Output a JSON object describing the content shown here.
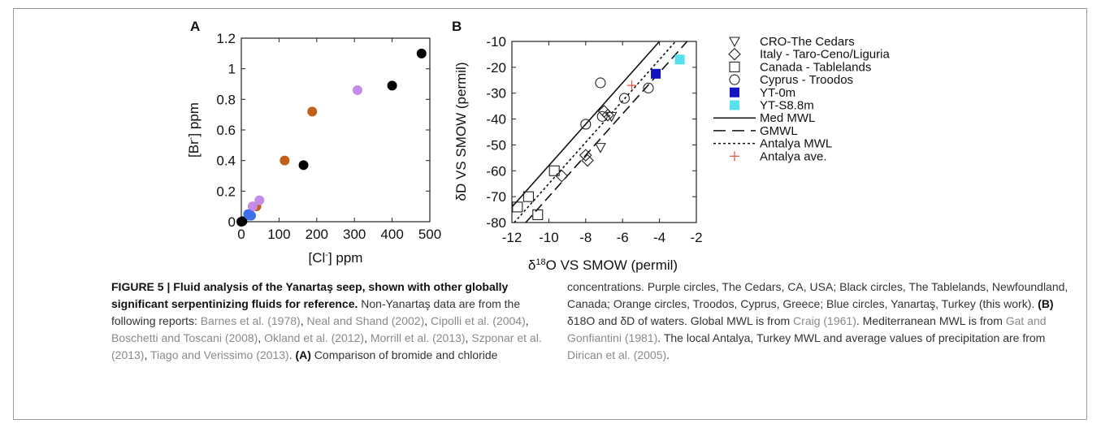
{
  "figure_label": "FIGURE 5 |",
  "figure_title": "Fluid analysis of the Yanartaş seep, shown with other globally significant serpentinizing fluids for reference.",
  "chart_data": [
    {
      "type": "scatter",
      "panel": "A",
      "xlabel": "[Cl-] ppm",
      "ylabel": "[Br-] ppm",
      "xlim": [
        0,
        500
      ],
      "ylim": [
        0,
        1.2
      ],
      "xticks": [
        "0",
        "100",
        "200",
        "300",
        "400",
        "500"
      ],
      "yticks": [
        "0",
        "0.2",
        "0.4",
        "0.6",
        "0.8",
        "1",
        "1.2"
      ],
      "series": [
        {
          "color": "#000000",
          "points": [
            [
              0,
              0
            ],
            [
              3,
              0.003
            ],
            [
              165,
              0.37
            ],
            [
              400,
              0.89
            ],
            [
              478,
              1.1
            ]
          ]
        },
        {
          "color": "#c0611a",
          "points": [
            [
              40,
              0.1
            ],
            [
              115,
              0.4
            ],
            [
              188,
              0.72
            ]
          ]
        },
        {
          "color": "#c58be6",
          "points": [
            [
              30,
              0.1
            ],
            [
              48,
              0.14
            ],
            [
              308,
              0.86
            ]
          ]
        },
        {
          "color": "#3f6fe8",
          "points": [
            [
              18,
              0.05
            ],
            [
              22,
              0.04
            ],
            [
              26,
              0.04
            ]
          ]
        }
      ]
    },
    {
      "type": "scatter",
      "panel": "B",
      "xlabel": "δ18O VS SMOW (permil)",
      "ylabel": "δD VS SMOW (permil)",
      "xlim": [
        -12,
        -2
      ],
      "ylim": [
        -80,
        -10
      ],
      "xticks": [
        "-12",
        "-10",
        "-8",
        "-6",
        "-4",
        "-2"
      ],
      "yticks": [
        "-10",
        "-20",
        "-30",
        "-40",
        "-50",
        "-60",
        "-70",
        "-80"
      ],
      "series": [
        {
          "name": "CRO-The Cedars",
          "marker": "triangle-down",
          "points": [
            [
              -7.2,
              -51
            ],
            [
              -6.6,
              -39
            ]
          ]
        },
        {
          "name": "Italy - Taro-Ceno/Liguria",
          "marker": "diamond",
          "points": [
            [
              -9.3,
              -62
            ],
            [
              -8.0,
              -54
            ],
            [
              -7.9,
              -56
            ],
            [
              -7.0,
              -37
            ],
            [
              -6.8,
              -38.5
            ]
          ]
        },
        {
          "name": "Canada - Tablelands",
          "marker": "square",
          "points": [
            [
              -11.7,
              -74
            ],
            [
              -11.1,
              -70
            ],
            [
              -10.6,
              -77
            ],
            [
              -9.7,
              -60
            ]
          ]
        },
        {
          "name": "Cyprus - Troodos",
          "marker": "circle",
          "points": [
            [
              -8.0,
              -42
            ],
            [
              -7.2,
              -26
            ],
            [
              -7.1,
              -39
            ],
            [
              -5.9,
              -32
            ],
            [
              -4.6,
              -28
            ]
          ]
        },
        {
          "name": "YT-0m",
          "marker": "filled-square",
          "color": "#1313c4",
          "points": [
            [
              -4.2,
              -22.5
            ]
          ]
        },
        {
          "name": "YT-S8.8m",
          "marker": "filled-square",
          "color": "#56e0ee",
          "points": [
            [
              -2.9,
              -17
            ]
          ]
        },
        {
          "name": "Antalya ave.",
          "marker": "plus",
          "color": "#e54b3c",
          "points": [
            [
              -5.5,
              -27
            ]
          ]
        }
      ],
      "lines": [
        {
          "name": "Med MWL",
          "style": "solid",
          "slope": 8,
          "intercept": 22
        },
        {
          "name": "GMWL",
          "style": "dashed",
          "slope": 8,
          "intercept": 10
        },
        {
          "name": "Antalya MWL",
          "style": "dotted",
          "slope": 8,
          "intercept": 15
        }
      ]
    }
  ],
  "caption_left_segments": [
    {
      "t": "FIGURE 5 | Fluid analysis of the Yanartaş seep, shown with other globally significant serpentinizing fluids for reference.",
      "c": "b"
    },
    {
      "t": " Non-Yanartaş data are from the following reports: ",
      "c": ""
    },
    {
      "t": "Barnes et al. (1978)",
      "c": "ref"
    },
    {
      "t": ", ",
      "c": ""
    },
    {
      "t": "Neal and Shand (2002)",
      "c": "ref"
    },
    {
      "t": ", ",
      "c": ""
    },
    {
      "t": "Cipolli et al. (2004)",
      "c": "ref"
    },
    {
      "t": ", ",
      "c": ""
    },
    {
      "t": "Boschetti and Toscani (2008)",
      "c": "ref"
    },
    {
      "t": ", ",
      "c": ""
    },
    {
      "t": "Okland et al. (2012)",
      "c": "ref"
    },
    {
      "t": ", ",
      "c": ""
    },
    {
      "t": "Morrill et al. (2013)",
      "c": "ref"
    },
    {
      "t": ", ",
      "c": ""
    },
    {
      "t": "Szponar et al. (2013)",
      "c": "ref"
    },
    {
      "t": ", ",
      "c": ""
    },
    {
      "t": "Tiago and Verissimo (2013)",
      "c": "ref"
    },
    {
      "t": ". ",
      "c": ""
    },
    {
      "t": "(A)",
      "c": "b"
    },
    {
      "t": " Comparison of bromide and chloride",
      "c": ""
    }
  ],
  "caption_right_segments": [
    {
      "t": "concentrations. Purple circles, The Cedars, CA, USA; Black circles, The Tablelands, Newfoundland, Canada; Orange circles, Troodos, Cyprus, Greece; Blue circles, Yanartaş, Turkey (this work). ",
      "c": ""
    },
    {
      "t": "(B)",
      "c": "b"
    },
    {
      "t": " δ18O and δD of waters. Global MWL is from ",
      "c": ""
    },
    {
      "t": "Craig (1961)",
      "c": "ref"
    },
    {
      "t": ". Mediterranean MWL is from ",
      "c": ""
    },
    {
      "t": "Gat and Gonfiantini (1981)",
      "c": "ref"
    },
    {
      "t": ". The local Antalya, Turkey MWL and average values of precipitation are from ",
      "c": ""
    },
    {
      "t": "Dirican et al. (2005)",
      "c": "ref"
    },
    {
      "t": ".",
      "c": ""
    }
  ]
}
